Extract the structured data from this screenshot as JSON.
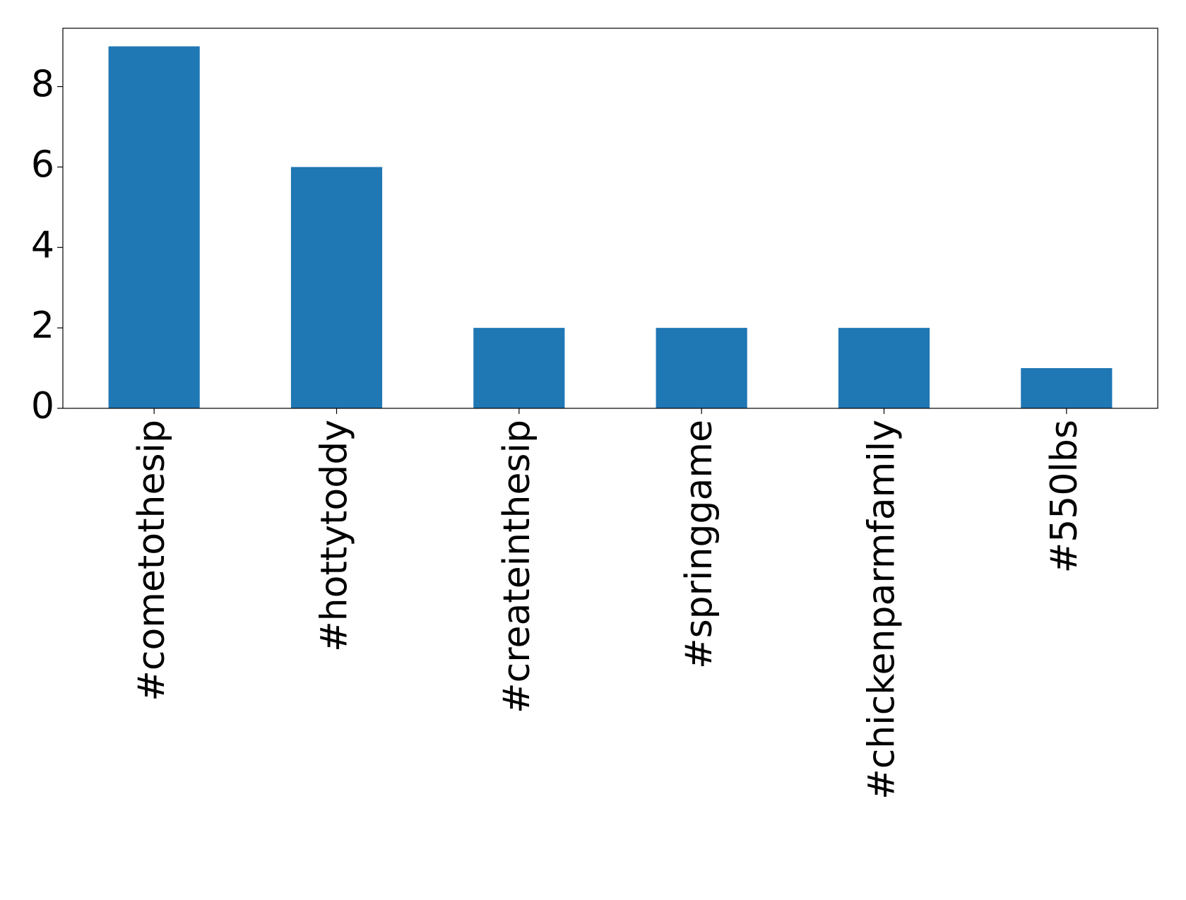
{
  "chart_data": {
    "type": "bar",
    "categories": [
      "#cometothesip",
      "#hottytoddy",
      "#createinthesip",
      "#springgame",
      "#chickenparmfamily",
      "#550lbs"
    ],
    "values": [
      9,
      6,
      2,
      2,
      2,
      1
    ],
    "color": "#1f77b4",
    "ylim": [
      0,
      9.45
    ],
    "yticks": [
      0,
      2,
      4,
      6,
      8
    ],
    "grid": false
  }
}
